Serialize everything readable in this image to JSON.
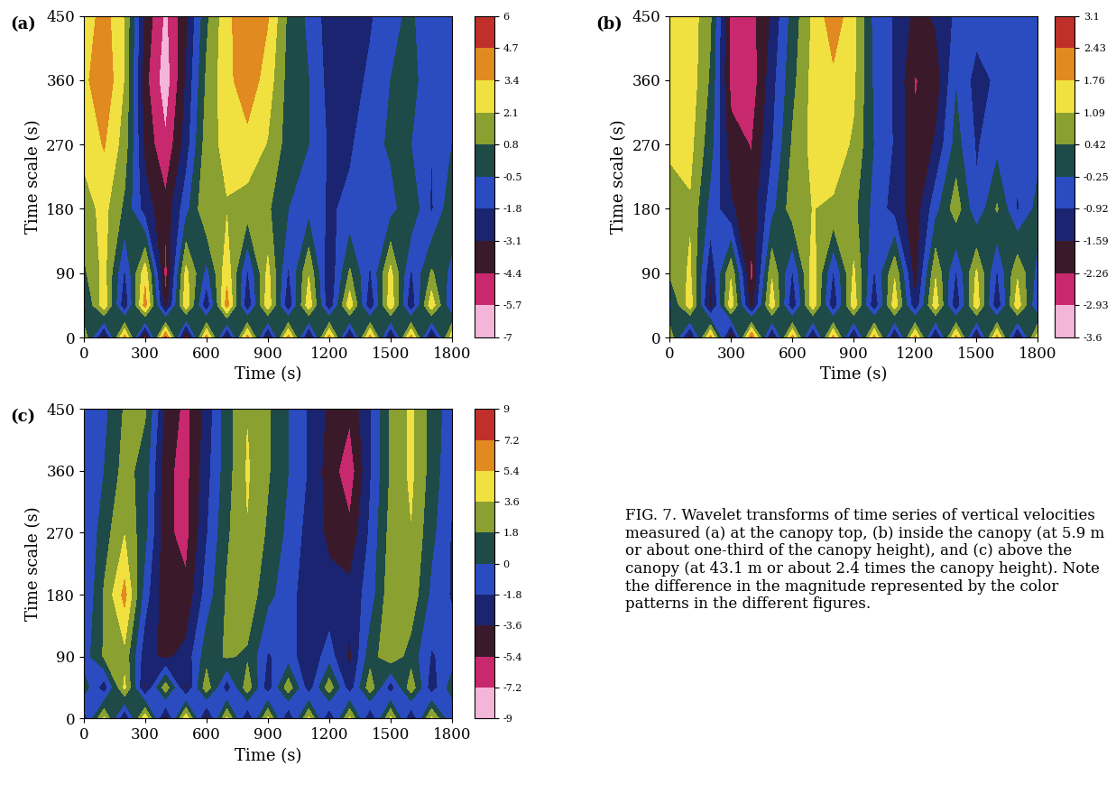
{
  "chart_data": [
    {
      "type": "heatmap",
      "label": "(a)",
      "x_label": "Time (s)",
      "y_label": "Time scale (s)",
      "x": [
        0,
        100,
        200,
        300,
        400,
        500,
        600,
        700,
        800,
        900,
        1000,
        1100,
        1200,
        1300,
        1400,
        1500,
        1600,
        1700,
        1800
      ],
      "y": [
        0,
        45,
        90,
        180,
        270,
        360,
        450
      ],
      "cells": [
        [
          2,
          -4,
          4,
          -5,
          5,
          -5,
          4,
          -4,
          4,
          -4,
          4,
          -4,
          4,
          -4,
          4,
          -4,
          4,
          -4,
          3
        ],
        [
          -1,
          3,
          -3,
          4,
          -4,
          3,
          -3,
          4,
          -3,
          3,
          -3,
          3,
          -3,
          3,
          -3,
          3,
          -3,
          3,
          -2
        ],
        [
          0.5,
          2.5,
          -2,
          3,
          -5,
          2.5,
          -1,
          3,
          -2,
          2.5,
          -2,
          2,
          -3,
          1,
          -2,
          2.5,
          -2,
          1,
          -1
        ],
        [
          1.5,
          2.5,
          0.5,
          -2.5,
          -4,
          -1,
          2,
          2,
          1.5,
          1,
          -0.5,
          -1,
          -2,
          -1.5,
          -0.5,
          -1,
          0.5,
          -2,
          0.5
        ],
        [
          2.5,
          3.5,
          1.5,
          -3.5,
          -5.5,
          -2.5,
          1.5,
          2.5,
          3,
          2,
          0.2,
          -0.5,
          -2,
          -2,
          -1,
          -0.3,
          -0.5,
          -1.8,
          -0.5
        ],
        [
          3,
          4.5,
          2,
          -4,
          -6.5,
          -3,
          1,
          3,
          4.2,
          2.8,
          0.3,
          -0.5,
          -2.3,
          -2.5,
          -1.5,
          -0.5,
          0,
          -1.5,
          -1
        ],
        [
          2.5,
          4,
          2,
          -3.5,
          -6,
          -3.5,
          0.5,
          3,
          4.5,
          3.5,
          0.5,
          -0.8,
          -2.5,
          -2.8,
          -2,
          -0.8,
          -0.3,
          -1.5,
          -1
        ]
      ],
      "xlim": [
        0,
        1800
      ],
      "ylim": [
        0,
        450
      ],
      "xticks": [
        0,
        300,
        600,
        900,
        1200,
        1500,
        1800
      ],
      "yticks": [
        0,
        90,
        180,
        270,
        360,
        450
      ],
      "colorbar_range": [
        -7,
        6
      ],
      "colorbar_ticks": [
        -7,
        -5.7,
        -4.4,
        -3.1,
        -1.8,
        -0.5,
        0.8,
        2.1,
        3.4,
        4.7,
        6
      ]
    },
    {
      "type": "heatmap",
      "label": "(b)",
      "x_label": "Time (s)",
      "y_label": "Time scale (s)",
      "x": [
        0,
        100,
        200,
        300,
        400,
        500,
        600,
        700,
        800,
        900,
        1000,
        1100,
        1200,
        1300,
        1400,
        1500,
        1600,
        1700,
        1800
      ],
      "y": [
        0,
        45,
        90,
        180,
        270,
        360,
        450
      ],
      "cells": [
        [
          1,
          -2,
          2,
          -2.5,
          2.5,
          -2,
          2,
          -2,
          2,
          -2,
          2,
          -2,
          2,
          -2,
          2,
          -2,
          2,
          -2,
          1.5
        ],
        [
          -0.5,
          1.5,
          -2,
          1.5,
          -2,
          1.5,
          -1.5,
          1.5,
          -1.5,
          1.5,
          -1.5,
          1.5,
          -1.5,
          1.5,
          -1.5,
          1.5,
          -1.5,
          1.5,
          -1
        ],
        [
          0.5,
          1.2,
          -1.5,
          1,
          -2.5,
          1,
          -1,
          1.5,
          -1,
          1.2,
          -1,
          1,
          -2,
          1,
          -1,
          1.2,
          -1,
          1,
          -0.5
        ],
        [
          0.8,
          1,
          -0.5,
          -1.5,
          -2,
          -0.5,
          0.8,
          1.1,
          1,
          0.6,
          -0.5,
          -1.2,
          -2,
          -0.5,
          0.8,
          -0.8,
          0.5,
          -1,
          0
        ],
        [
          1.2,
          1.3,
          0,
          -2,
          -2.3,
          -1,
          0.5,
          1.3,
          1.4,
          1,
          -0.3,
          -1,
          -2.2,
          -1.5,
          0,
          -1,
          -0.5,
          -0.8,
          -0.5
        ],
        [
          1.3,
          1.5,
          0.3,
          -2.5,
          -2.7,
          -1.2,
          0.2,
          1.3,
          1.6,
          1.2,
          -0.4,
          -1,
          -2.3,
          -2,
          -0.3,
          -1.2,
          -0.8,
          -0.7,
          -0.7
        ],
        [
          1.2,
          1.5,
          0.5,
          -2.5,
          -2.5,
          -1.5,
          0,
          1.2,
          2.2,
          1.3,
          -0.5,
          -1,
          -1.8,
          -1.5,
          -0.8,
          -0.6,
          -0.5,
          -0.6,
          -0.7
        ]
      ],
      "xlim": [
        0,
        1800
      ],
      "ylim": [
        0,
        450
      ],
      "xticks": [
        0,
        300,
        600,
        900,
        1200,
        1500,
        1800
      ],
      "yticks": [
        0,
        90,
        180,
        270,
        360,
        450
      ],
      "colorbar_range": [
        -3.6,
        3.1
      ],
      "colorbar_ticks": [
        -3.6,
        -2.93,
        -2.26,
        -1.59,
        -0.92,
        -0.25,
        0.42,
        1.09,
        1.76,
        2.43,
        3.1
      ]
    },
    {
      "type": "heatmap",
      "label": "(c)",
      "x_label": "Time (s)",
      "y_label": "Time scale (s)",
      "x": [
        0,
        100,
        200,
        300,
        400,
        500,
        600,
        700,
        800,
        900,
        1000,
        1100,
        1200,
        1300,
        1400,
        1500,
        1600,
        1700,
        1800
      ],
      "y": [
        0,
        45,
        90,
        180,
        270,
        360,
        450
      ],
      "cells": [
        [
          -3,
          4,
          -4,
          5,
          -5,
          5,
          -5,
          4,
          -4,
          4,
          -4,
          4,
          -4,
          4,
          -4,
          4,
          -4,
          4,
          -2
        ],
        [
          1,
          -3,
          4,
          -4,
          3,
          -4,
          3,
          -3,
          3,
          -3,
          3,
          -3,
          3,
          -3,
          3,
          -3,
          3,
          -3,
          1
        ],
        [
          -1,
          2,
          3,
          -3,
          -4,
          -3,
          1,
          2,
          1.5,
          -2,
          -1,
          -3,
          -1,
          -4,
          1,
          3,
          1,
          -2,
          -1
        ],
        [
          -2,
          2,
          6,
          -1,
          -5,
          -5,
          -1,
          2,
          3,
          0.5,
          -1,
          -3,
          -3,
          -3,
          -1,
          3,
          3,
          -0.5,
          -2
        ],
        [
          -2,
          1,
          3.5,
          0.5,
          -5,
          -6,
          -2,
          1.5,
          3.5,
          1.5,
          -0.5,
          -2.5,
          -4,
          -5,
          -1.5,
          2.5,
          3.5,
          0.5,
          -2
        ],
        [
          -1.5,
          0,
          2.5,
          1,
          -5,
          -6,
          -2.5,
          1,
          3.8,
          2,
          0,
          -2,
          -4.5,
          -6.5,
          -2,
          2,
          4,
          1,
          -1.5
        ],
        [
          -1,
          -0.5,
          2,
          2,
          -4,
          -6,
          -3,
          1,
          3.5,
          2,
          0,
          -2,
          -4,
          -5,
          -2,
          2,
          4,
          1,
          -1
        ]
      ],
      "xlim": [
        0,
        1800
      ],
      "ylim": [
        0,
        450
      ],
      "xticks": [
        0,
        300,
        600,
        900,
        1200,
        1500,
        1800
      ],
      "yticks": [
        0,
        90,
        180,
        270,
        360,
        450
      ],
      "colorbar_range": [
        -9,
        9
      ],
      "colorbar_ticks": [
        -9,
        -7.2,
        -5.4,
        -3.6,
        -1.8,
        0,
        1.8,
        3.6,
        5.4,
        7.2,
        9
      ]
    }
  ],
  "caption": "FIG. 7. Wavelet transforms of time series of vertical velocities measured (a) at the canopy top, (b) inside the canopy (at 5.9 m or about one-third of the canopy height), and (c) above the canopy (at 43.1 m or about 2.4 times the canopy height). Note the difference in the magnitude represented by the color patterns in the different figures."
}
